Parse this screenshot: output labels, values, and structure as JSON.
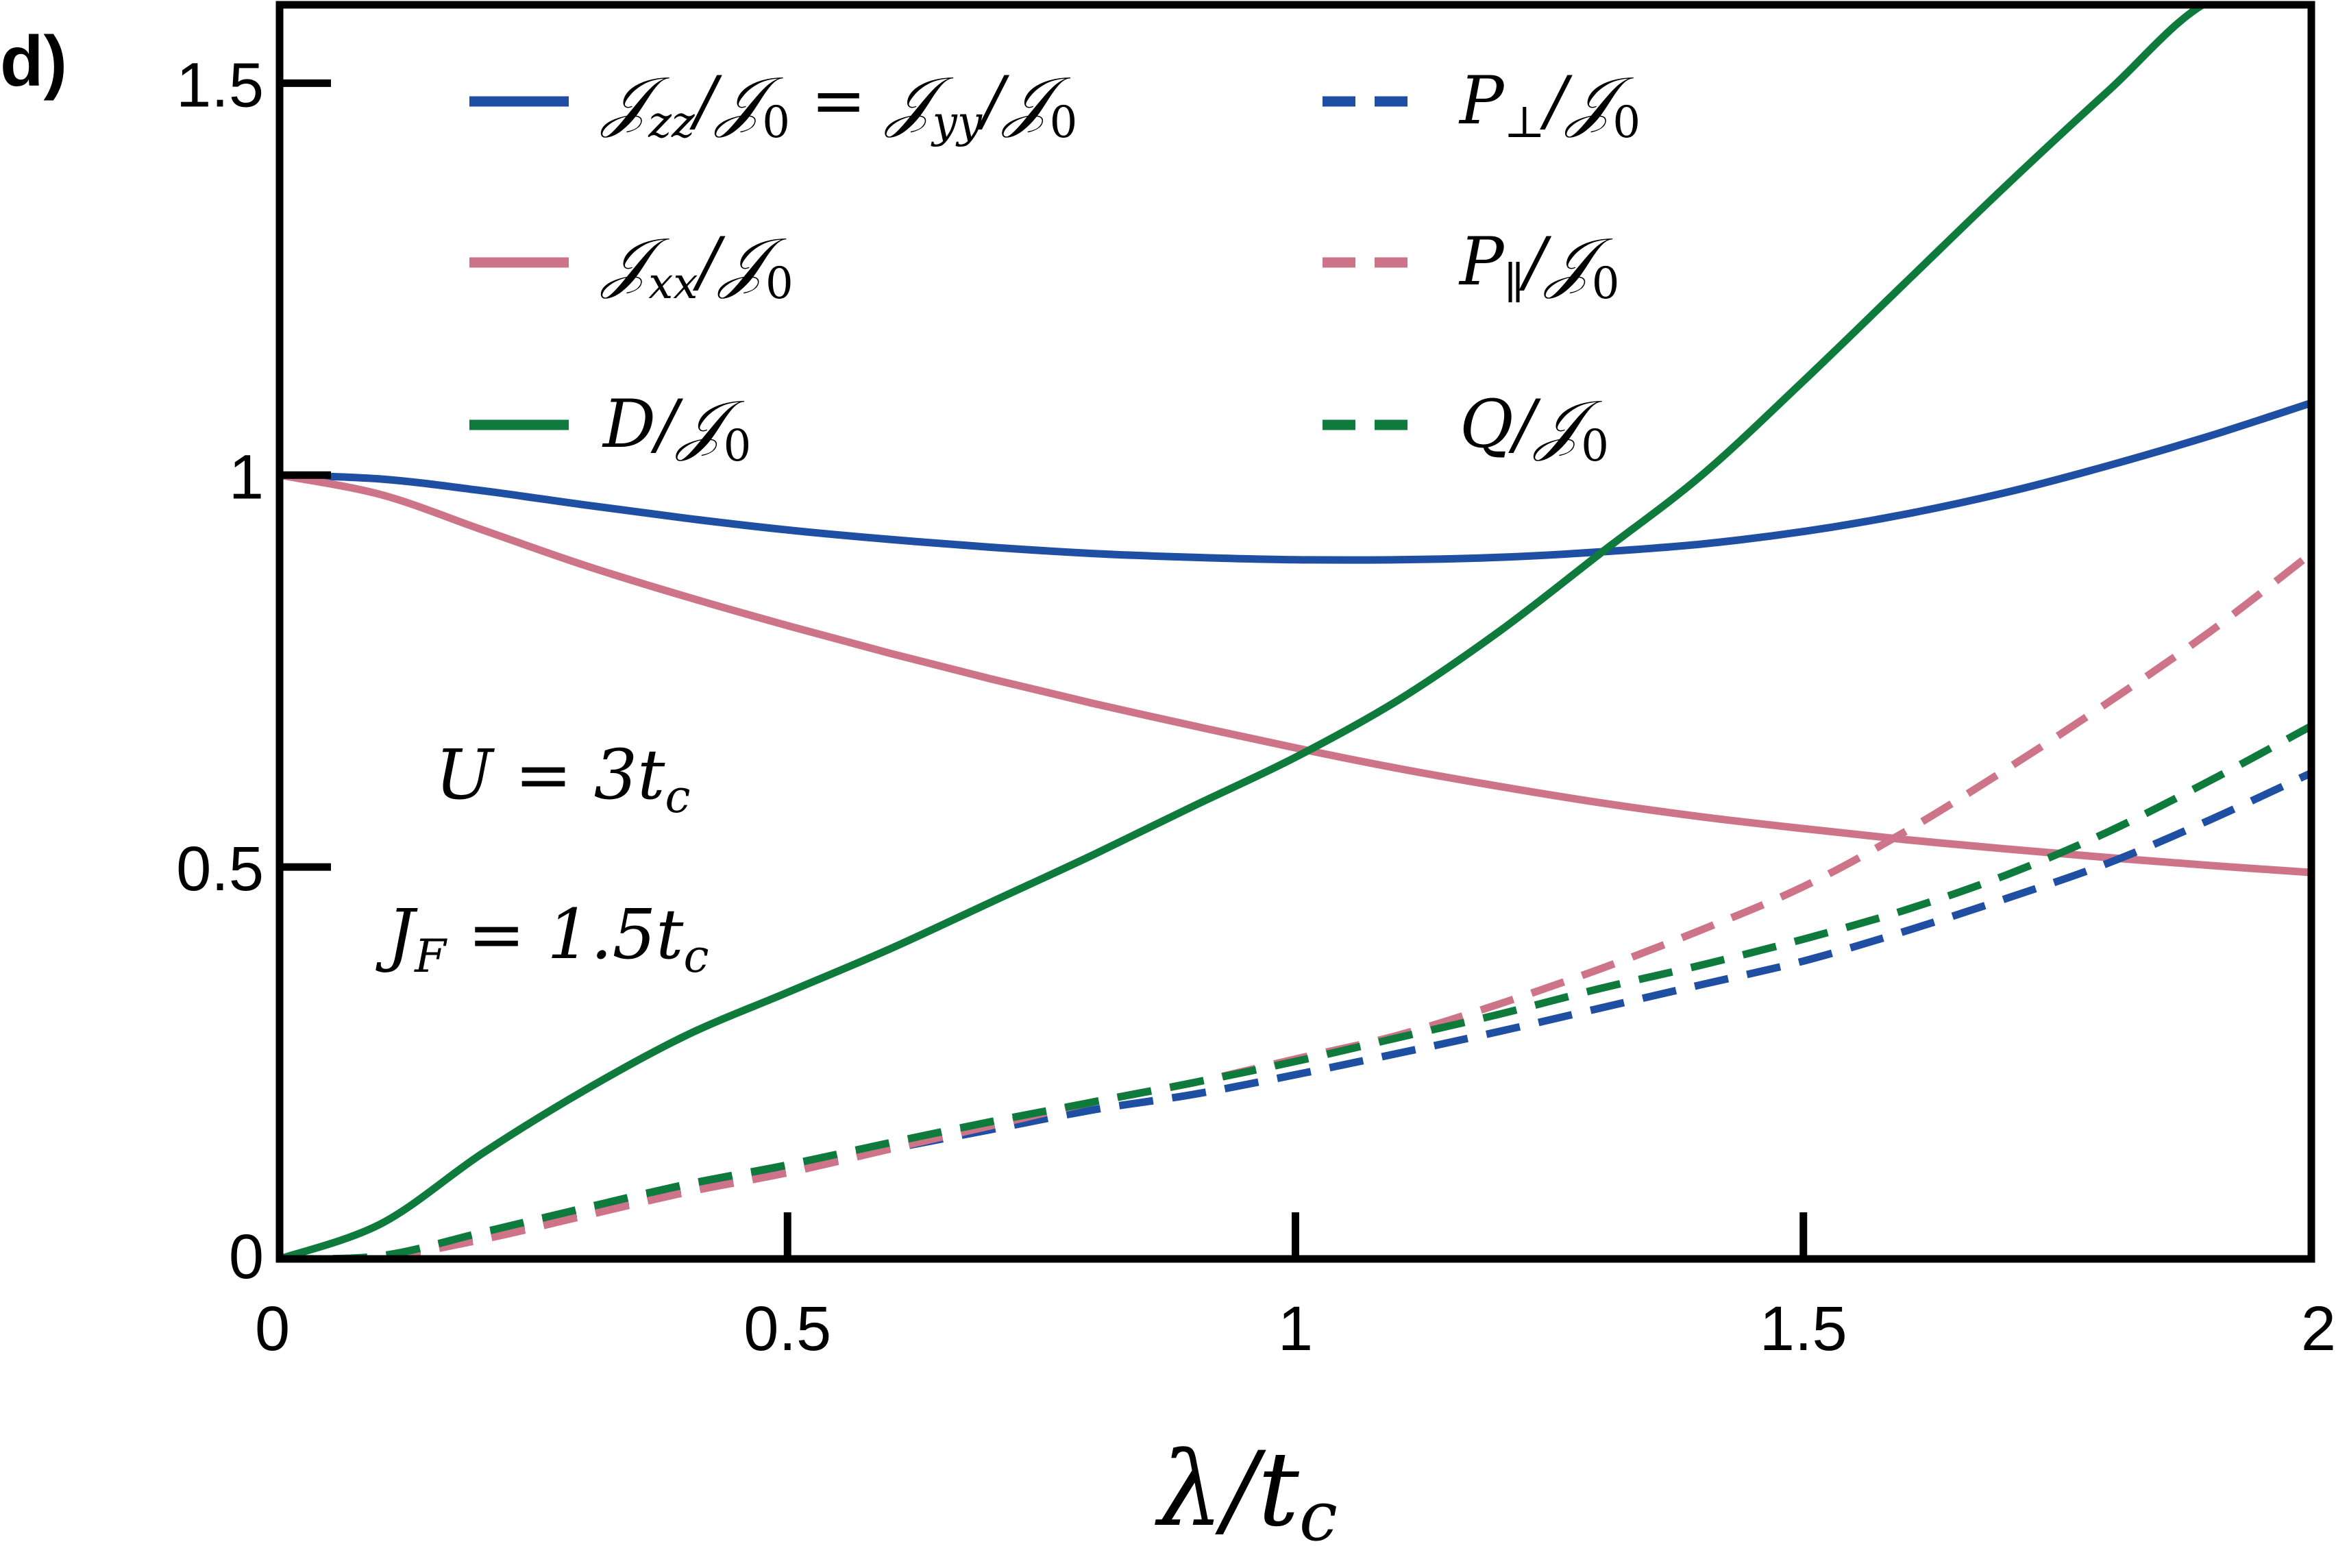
{
  "panel_label": "d)",
  "colors": {
    "blue": "#1f4fa3",
    "pink": "#cd7489",
    "green": "#0e7b3c",
    "axis": "#000000"
  },
  "chart_data": {
    "type": "line",
    "xlabel": "λ/t_c",
    "xlim": [
      0,
      2
    ],
    "ylim": [
      0,
      1.6
    ],
    "x_ticks": [
      0,
      0.5,
      1,
      1.5,
      2
    ],
    "x_tick_labels": [
      "0",
      "0.5",
      "1",
      "1.5",
      "2"
    ],
    "y_ticks": [
      0,
      0.5,
      1,
      1.5
    ],
    "y_tick_labels": [
      "0",
      "0.5",
      "1",
      "1.5"
    ],
    "grid": false,
    "legend_placement": "top",
    "annotations": [
      "U = 3t_c",
      "J_F = 1.5t_c"
    ],
    "x": [
      0,
      0.1,
      0.2,
      0.3,
      0.4,
      0.5,
      0.6,
      0.7,
      0.8,
      0.9,
      1.0,
      1.1,
      1.2,
      1.3,
      1.4,
      1.5,
      1.6,
      1.7,
      1.8,
      1.9,
      2.0
    ],
    "series": [
      {
        "name": "𝒥zz/𝒥0 = 𝒥yy/𝒥0",
        "color": "blue",
        "style": "solid",
        "values": [
          1.0,
          0.995,
          0.98,
          0.962,
          0.945,
          0.93,
          0.918,
          0.908,
          0.9,
          0.895,
          0.892,
          0.892,
          0.895,
          0.902,
          0.912,
          0.928,
          0.95,
          0.978,
          1.012,
          1.05,
          1.092
        ]
      },
      {
        "name": "𝒥xx/𝒥0",
        "color": "pink",
        "style": "solid",
        "values": [
          1.0,
          0.975,
          0.93,
          0.885,
          0.845,
          0.808,
          0.773,
          0.74,
          0.709,
          0.68,
          0.652,
          0.626,
          0.603,
          0.582,
          0.564,
          0.549,
          0.535,
          0.523,
          0.512,
          0.502,
          0.493
        ]
      },
      {
        "name": "D/𝒥0",
        "color": "green",
        "style": "solid",
        "values": [
          0.0,
          0.045,
          0.135,
          0.215,
          0.285,
          0.34,
          0.395,
          0.455,
          0.515,
          0.578,
          0.64,
          0.712,
          0.8,
          0.9,
          1.0,
          1.12,
          1.245,
          1.37,
          1.49,
          1.605,
          1.72
        ]
      },
      {
        "name": "P⊥/𝒥0",
        "color": "blue",
        "style": "dashed",
        "values": [
          0.0,
          0.003,
          0.03,
          0.06,
          0.09,
          0.115,
          0.14,
          0.165,
          0.19,
          0.21,
          0.235,
          0.262,
          0.29,
          0.32,
          0.35,
          0.38,
          0.418,
          0.46,
          0.505,
          0.56,
          0.62
        ]
      },
      {
        "name": "P∥/𝒥0",
        "color": "pink",
        "style": "dashed",
        "values": [
          0.0,
          0.002,
          0.025,
          0.055,
          0.085,
          0.11,
          0.14,
          0.17,
          0.2,
          0.225,
          0.255,
          0.285,
          0.325,
          0.37,
          0.42,
          0.475,
          0.545,
          0.625,
          0.71,
          0.8,
          0.9
        ]
      },
      {
        "name": "Q/𝒥0",
        "color": "green",
        "style": "dashed",
        "values": [
          0.0,
          0.004,
          0.034,
          0.065,
          0.095,
          0.12,
          0.148,
          0.175,
          0.2,
          0.225,
          0.252,
          0.282,
          0.312,
          0.345,
          0.375,
          0.408,
          0.445,
          0.49,
          0.545,
          0.61,
          0.68
        ]
      }
    ]
  }
}
